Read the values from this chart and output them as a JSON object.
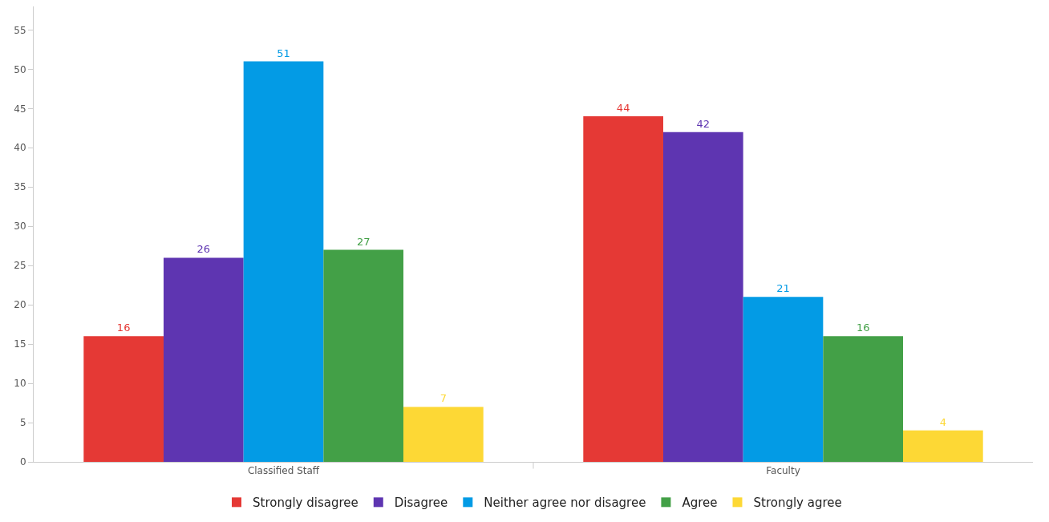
{
  "chart_data": {
    "type": "bar",
    "categories": [
      "Classified Staff",
      "Faculty"
    ],
    "series": [
      {
        "name": "Strongly disagree",
        "color": "#e53935",
        "values": [
          16,
          44
        ]
      },
      {
        "name": "Disagree",
        "color": "#5e35b1",
        "values": [
          26,
          42
        ]
      },
      {
        "name": "Neither agree nor disagree",
        "color": "#039be5",
        "values": [
          51,
          21
        ]
      },
      {
        "name": "Agree",
        "color": "#43a047",
        "values": [
          27,
          16
        ]
      },
      {
        "name": "Strongly agree",
        "color": "#fdd835",
        "values": [
          7,
          4
        ]
      }
    ],
    "ylim": [
      0,
      58
    ],
    "yticks": [
      0,
      5,
      10,
      15,
      20,
      25,
      30,
      35,
      40,
      45,
      50,
      55
    ],
    "grid": false,
    "legend": "bottom",
    "data_labels": true
  }
}
